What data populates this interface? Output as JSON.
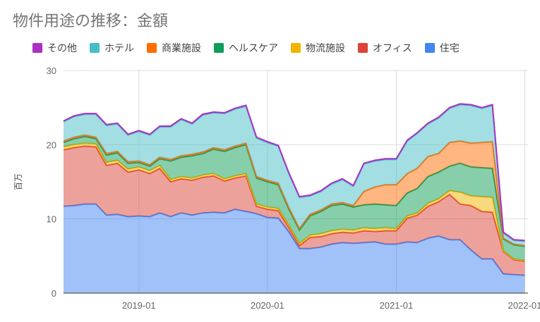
{
  "chart_data": {
    "type": "area",
    "title": "物件用途の推移：金額",
    "ylabel": "百万",
    "xlabel": "",
    "ylim": [
      0,
      30
    ],
    "yticks": [
      0,
      10,
      20,
      30
    ],
    "stacked": true,
    "legend_position": "top",
    "x_start": "2018-06-01",
    "x_end": "2022-01-10",
    "x_tick_labels": [
      {
        "date": "2019-01-01",
        "label": "2019-01"
      },
      {
        "date": "2020-01-01",
        "label": "2020-01"
      },
      {
        "date": "2021-01-01",
        "label": "2021-01"
      },
      {
        "date": "2022-01-01",
        "label": "2022-01"
      }
    ],
    "x": [
      "2018-06-01",
      "2018-07-01",
      "2018-08-01",
      "2018-09-01",
      "2018-10-01",
      "2018-11-01",
      "2018-12-01",
      "2019-01-01",
      "2019-02-01",
      "2019-03-01",
      "2019-04-01",
      "2019-05-01",
      "2019-06-01",
      "2019-07-01",
      "2019-08-01",
      "2019-09-01",
      "2019-10-01",
      "2019-11-01",
      "2019-12-01",
      "2020-01-01",
      "2020-02-01",
      "2020-03-01",
      "2020-04-01",
      "2020-05-01",
      "2020-06-01",
      "2020-07-01",
      "2020-08-01",
      "2020-09-01",
      "2020-10-01",
      "2020-11-01",
      "2020-12-01",
      "2021-01-01",
      "2021-02-01",
      "2021-03-01",
      "2021-04-01",
      "2021-05-01",
      "2021-06-01",
      "2021-07-01",
      "2021-08-01",
      "2021-09-01",
      "2021-10-01",
      "2021-11-01",
      "2021-12-01",
      "2022-01-01"
    ],
    "series": [
      {
        "name": "住宅",
        "color": "#4285f4",
        "values": [
          11.7,
          11.8,
          12.0,
          12.0,
          10.5,
          10.6,
          10.3,
          10.4,
          10.3,
          10.8,
          10.3,
          10.8,
          10.5,
          10.8,
          10.9,
          10.8,
          11.3,
          11.0,
          10.7,
          10.2,
          10.1,
          8.3,
          6.0,
          6.0,
          6.2,
          6.6,
          6.8,
          6.7,
          6.8,
          6.9,
          6.6,
          6.6,
          6.9,
          6.8,
          7.4,
          7.7,
          7.2,
          7.2,
          5.8,
          4.6,
          4.6,
          2.6,
          2.5,
          2.4
        ]
      },
      {
        "name": "オフィス",
        "color": "#db4437",
        "values": [
          7.6,
          7.8,
          7.8,
          7.7,
          6.7,
          6.9,
          6.0,
          6.2,
          5.8,
          6.0,
          4.7,
          4.6,
          4.7,
          4.8,
          4.9,
          4.3,
          4.2,
          4.8,
          1.0,
          1.1,
          1.0,
          0.6,
          0.4,
          1.5,
          1.4,
          1.4,
          1.4,
          1.4,
          1.6,
          1.4,
          1.8,
          1.8,
          3.2,
          3.7,
          4.3,
          4.6,
          6.1,
          4.8,
          6.0,
          6.4,
          6.3,
          3.0,
          2.0,
          1.9
        ]
      },
      {
        "name": "物流施設",
        "color": "#f4b400",
        "values": [
          0.4,
          0.4,
          0.4,
          0.4,
          0.4,
          0.4,
          0.4,
          0.4,
          0.4,
          0.4,
          0.3,
          0.3,
          0.3,
          0.3,
          0.3,
          0.3,
          0.3,
          0.3,
          0.3,
          0.3,
          0.3,
          0.3,
          0.3,
          0.3,
          0.4,
          0.4,
          0.4,
          0.4,
          0.4,
          0.4,
          0.4,
          0.3,
          0.3,
          0.3,
          0.4,
          0.4,
          0.5,
          1.6,
          1.3,
          2.0,
          2.0,
          0.1,
          0.1,
          0.1
        ]
      },
      {
        "name": "ヘルスケア",
        "color": "#0f9d58",
        "values": [
          0.6,
          0.8,
          0.9,
          0.7,
          1.0,
          1.0,
          0.8,
          0.6,
          0.6,
          0.9,
          2.5,
          2.6,
          3.0,
          2.9,
          3.3,
          3.7,
          3.8,
          3.9,
          3.5,
          3.4,
          3.2,
          2.2,
          1.8,
          2.6,
          3.0,
          3.4,
          3.4,
          3.1,
          3.1,
          3.3,
          3.1,
          3.1,
          3.1,
          3.3,
          3.6,
          3.6,
          3.3,
          3.9,
          3.9,
          3.9,
          3.9,
          1.6,
          1.9,
          1.9
        ]
      },
      {
        "name": "商業施設",
        "color": "#ff6d01",
        "values": [
          0.2,
          0.2,
          0.2,
          0.2,
          0.2,
          0.2,
          0.2,
          0.2,
          0.2,
          0.2,
          0.2,
          0.2,
          0.2,
          0.2,
          0.2,
          0.2,
          0.2,
          0.2,
          0.2,
          0.2,
          0.2,
          0.2,
          0.2,
          0.2,
          0.2,
          0.2,
          0.2,
          0.2,
          1.8,
          2.3,
          2.7,
          2.8,
          2.6,
          2.7,
          2.7,
          2.5,
          3.2,
          3.0,
          3.2,
          3.4,
          3.6,
          0.1,
          0.1,
          0.1
        ]
      },
      {
        "name": "ホテル",
        "color": "#46bdc6",
        "values": [
          2.6,
          2.8,
          2.8,
          3.1,
          3.8,
          3.7,
          3.6,
          4.0,
          4.0,
          4.1,
          4.4,
          4.9,
          4.1,
          5.0,
          4.7,
          4.9,
          5.0,
          5.0,
          5.2,
          5.1,
          5.0,
          4.6,
          4.2,
          2.5,
          2.5,
          2.7,
          3.1,
          2.6,
          3.7,
          3.5,
          3.4,
          3.4,
          4.4,
          4.7,
          4.4,
          4.8,
          4.6,
          4.9,
          5.1,
          4.6,
          4.9,
          0.7,
          0.5,
          0.6
        ]
      },
      {
        "name": "その他",
        "color": "#ab30c4",
        "values": [
          0.1,
          0.1,
          0.1,
          0.1,
          0.1,
          0.1,
          0.1,
          0.1,
          0.1,
          0.1,
          0.1,
          0.1,
          0.1,
          0.1,
          0.1,
          0.1,
          0.1,
          0.1,
          0.1,
          0.1,
          0.1,
          0.1,
          0.1,
          0.1,
          0.1,
          0.1,
          0.1,
          0.1,
          0.1,
          0.1,
          0.1,
          0.1,
          0.1,
          0.1,
          0.1,
          0.1,
          0.1,
          0.1,
          0.1,
          0.1,
          0.1,
          0.1,
          0.1,
          0.1
        ]
      }
    ]
  }
}
